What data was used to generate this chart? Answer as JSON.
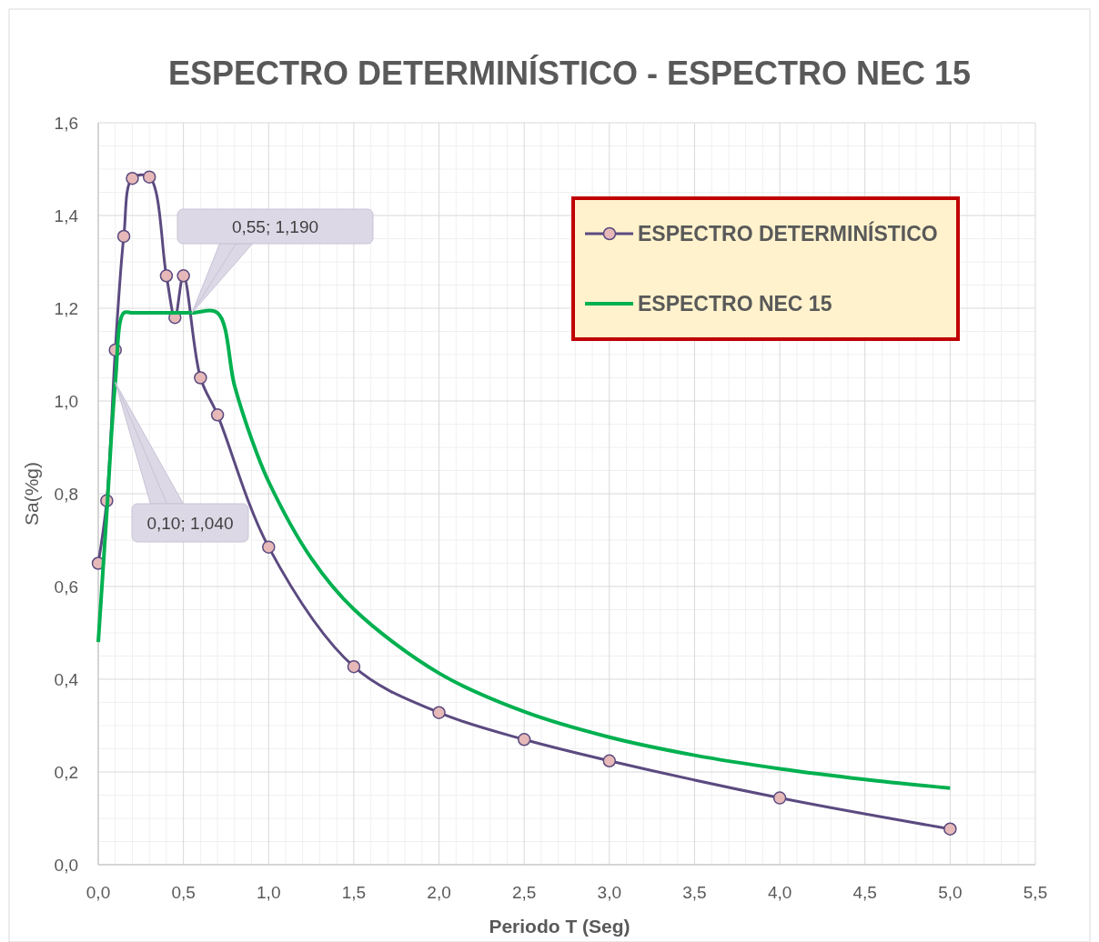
{
  "chart_data": {
    "type": "line",
    "title": "ESPECTRO DETERMINÍSTICO - ESPECTRO NEC 15",
    "xlabel": "Periodo T (Seg)",
    "ylabel": "Sa(%g)",
    "series": [
      {
        "name": "ESPECTRO DETERMINÍSTICO",
        "color": "#5b4a80",
        "marker": "circle",
        "x": [
          0,
          0.05,
          0.1,
          0.15,
          0.2,
          0.3,
          0.4,
          0.45,
          0.5,
          0.6,
          0.7,
          1.0,
          1.5,
          2.0,
          2.5,
          3.0,
          4.0,
          5.0
        ],
        "values": [
          0.65,
          0.785,
          1.11,
          1.355,
          1.48,
          1.483,
          1.27,
          1.18,
          1.27,
          1.05,
          0.97,
          0.685,
          0.427,
          0.328,
          0.27,
          0.224,
          0.144,
          0.077
        ]
      },
      {
        "name": "ESPECTRO NEC 15",
        "color": "#00b050",
        "marker": "none",
        "x": [
          0,
          0.05,
          0.1,
          0.15,
          0.2,
          0.3,
          0.4,
          0.55,
          0.7,
          0.8,
          0.9,
          1.0,
          1.25,
          1.5,
          2.0,
          2.5,
          3.0,
          3.5,
          4.0,
          4.5,
          5.0
        ],
        "values": [
          0.48,
          0.76,
          1.04,
          1.19,
          1.19,
          1.19,
          1.19,
          1.19,
          1.19,
          1.033,
          0.918,
          0.826,
          0.661,
          0.551,
          0.413,
          0.33,
          0.275,
          0.236,
          0.207,
          0.184,
          0.165
        ]
      }
    ],
    "annotations": [
      {
        "text": "0,55; 1,190",
        "x": 0.55,
        "y": 1.19
      },
      {
        "text": "0,10; 1,040",
        "x": 0.1,
        "y": 1.04
      }
    ],
    "xlim": [
      0,
      5.5
    ],
    "xticks": [
      {
        "value": 0,
        "label": "0,0"
      },
      {
        "value": 0.5,
        "label": "0,5"
      },
      {
        "value": 1,
        "label": "1,0"
      },
      {
        "value": 1.5,
        "label": "1,5"
      },
      {
        "value": 2,
        "label": "2,0"
      },
      {
        "value": 2.5,
        "label": "2,5"
      },
      {
        "value": 3,
        "label": "3,0"
      },
      {
        "value": 3.5,
        "label": "3,5"
      },
      {
        "value": 4,
        "label": "4,0"
      },
      {
        "value": 4.5,
        "label": "4,5"
      },
      {
        "value": 5,
        "label": "5,0"
      },
      {
        "value": 5.5,
        "label": "5,5"
      }
    ],
    "ylim": [
      0,
      1.6
    ],
    "yticks": [
      {
        "value": 0,
        "label": "0,0"
      },
      {
        "value": 0.2,
        "label": "0,2"
      },
      {
        "value": 0.4,
        "label": "0,4"
      },
      {
        "value": 0.6,
        "label": "0,6"
      },
      {
        "value": 0.8,
        "label": "0,8"
      },
      {
        "value": 1,
        "label": "1,0"
      },
      {
        "value": 1.2,
        "label": "1,2"
      },
      {
        "value": 1.4,
        "label": "1,4"
      },
      {
        "value": 1.6,
        "label": "1,6"
      }
    ],
    "grid": true,
    "legend": "top right"
  }
}
